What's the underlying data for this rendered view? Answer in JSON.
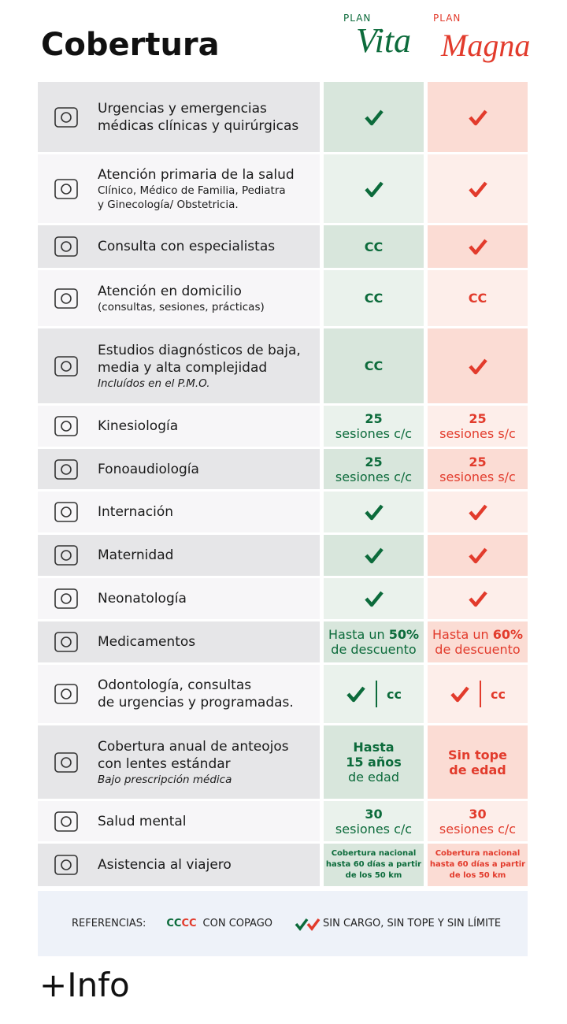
{
  "header": {
    "title": "Cobertura",
    "plans": [
      {
        "label": "PLAN",
        "name": "Vita",
        "color": "#0c6b3b"
      },
      {
        "label": "PLAN",
        "name": "Magna",
        "color": "#e23b2c"
      }
    ]
  },
  "rows": [
    {
      "title": [
        "Urgencias y emergencias",
        "médicas clínicas y quirúrgicas"
      ],
      "vita": {
        "check": true
      },
      "magna": {
        "check": true
      }
    },
    {
      "title": [
        "Atención primaria de la salud"
      ],
      "subtitle": [
        "Clínico, Médico de Familia, Pediatra",
        "y Ginecología/ Obstetricia."
      ],
      "vita": {
        "check": true
      },
      "magna": {
        "check": true
      }
    },
    {
      "title": [
        "Consulta con especialistas"
      ],
      "vita": {
        "lines": [
          [
            {
              "text": "CC",
              "bold": true
            }
          ]
        ]
      },
      "magna": {
        "check": true
      }
    },
    {
      "title": [
        "Atención en domicilio"
      ],
      "subtitle": [
        "(consultas, sesiones, prácticas)"
      ],
      "vita": {
        "lines": [
          [
            {
              "text": "CC",
              "bold": true
            }
          ]
        ]
      },
      "magna": {
        "lines": [
          [
            {
              "text": "CC",
              "bold": true
            }
          ]
        ]
      }
    },
    {
      "title": [
        "Estudios diagnósticos de baja,",
        "media y alta complejidad"
      ],
      "note": "Incluídos en el P.M.O.",
      "vita": {
        "lines": [
          [
            {
              "text": "CC",
              "bold": true
            }
          ]
        ]
      },
      "magna": {
        "check": true
      }
    },
    {
      "title": [
        "Kinesiología"
      ],
      "vita": {
        "lines": [
          [
            {
              "text": "25",
              "bold": true
            }
          ],
          [
            {
              "text": "sesiones c/c"
            }
          ]
        ]
      },
      "magna": {
        "lines": [
          [
            {
              "text": "25",
              "bold": true
            }
          ],
          [
            {
              "text": "sesiones s/c"
            }
          ]
        ]
      }
    },
    {
      "title": [
        "Fonoaudiología"
      ],
      "vita": {
        "lines": [
          [
            {
              "text": "25",
              "bold": true
            }
          ],
          [
            {
              "text": "sesiones c/c"
            }
          ]
        ]
      },
      "magna": {
        "lines": [
          [
            {
              "text": "25",
              "bold": true
            }
          ],
          [
            {
              "text": "sesiones s/c"
            }
          ]
        ]
      }
    },
    {
      "title": [
        "Internación"
      ],
      "vita": {
        "check": true
      },
      "magna": {
        "check": true
      }
    },
    {
      "title": [
        "Maternidad"
      ],
      "vita": {
        "check": true
      },
      "magna": {
        "check": true
      }
    },
    {
      "title": [
        "Neonatología"
      ],
      "vita": {
        "check": true
      },
      "magna": {
        "check": true
      }
    },
    {
      "title": [
        "Medicamentos"
      ],
      "vita": {
        "lines": [
          [
            {
              "text": "Hasta un "
            },
            {
              "text": "50%",
              "bold": true
            }
          ],
          [
            {
              "text": "de descuento"
            }
          ]
        ]
      },
      "magna": {
        "lines": [
          [
            {
              "text": "Hasta un "
            },
            {
              "text": "60%",
              "bold": true
            }
          ],
          [
            {
              "text": "de descuento"
            }
          ]
        ]
      }
    },
    {
      "title": [
        "Odontología, consultas",
        "de urgencias y programadas."
      ],
      "vita": {
        "check": true,
        "divider": true,
        "lines": [
          [
            {
              "text": "cc",
              "bold": true
            }
          ]
        ]
      },
      "magna": {
        "check": true,
        "divider": true,
        "lines": [
          [
            {
              "text": "cc",
              "bold": true
            }
          ]
        ]
      }
    },
    {
      "title": [
        "Cobertura anual de anteojos",
        "con lentes estándar"
      ],
      "note": "Bajo prescripción médica",
      "vita": {
        "lines": [
          [
            {
              "text": "Hasta",
              "bold": true
            }
          ],
          [
            {
              "text": "15 años",
              "bold": true
            }
          ],
          [
            {
              "text": "de edad"
            }
          ]
        ]
      },
      "magna": {
        "lines": [
          [
            {
              "text": "Sin tope",
              "bold": true
            }
          ],
          [
            {
              "text": "de edad",
              "bold": true
            }
          ]
        ]
      }
    },
    {
      "title": [
        "Salud mental"
      ],
      "vita": {
        "lines": [
          [
            {
              "text": "30",
              "bold": true
            }
          ],
          [
            {
              "text": "sesiones c/c"
            }
          ]
        ]
      },
      "magna": {
        "lines": [
          [
            {
              "text": "30",
              "bold": true
            }
          ],
          [
            {
              "text": "sesiones c/c"
            }
          ]
        ]
      }
    },
    {
      "title": [
        "Asistencia al viajero"
      ],
      "vita": {
        "small": true,
        "lines": [
          [
            {
              "text": "Cobertura nacional",
              "bold": true
            }
          ],
          [
            {
              "text": "hasta 60 días a partir",
              "bold": true
            }
          ],
          [
            {
              "text": "de los 50 km",
              "bold": true
            }
          ]
        ]
      },
      "magna": {
        "small": true,
        "lines": [
          [
            {
              "text": "Cobertura nacional",
              "bold": true
            }
          ],
          [
            {
              "text": "hasta 60 días a partir",
              "bold": true
            }
          ],
          [
            {
              "text": "de los 50 km",
              "bold": true
            }
          ]
        ]
      }
    }
  ],
  "references": {
    "label": "REFERENCIAS:",
    "cc_vita": "CC",
    "cc_magna": "CC",
    "cc_text": "CON COPAGO",
    "check_text": "SIN CARGO, SIN TOPE Y SIN LÍMITE"
  },
  "footer": {
    "link": "+Info"
  }
}
